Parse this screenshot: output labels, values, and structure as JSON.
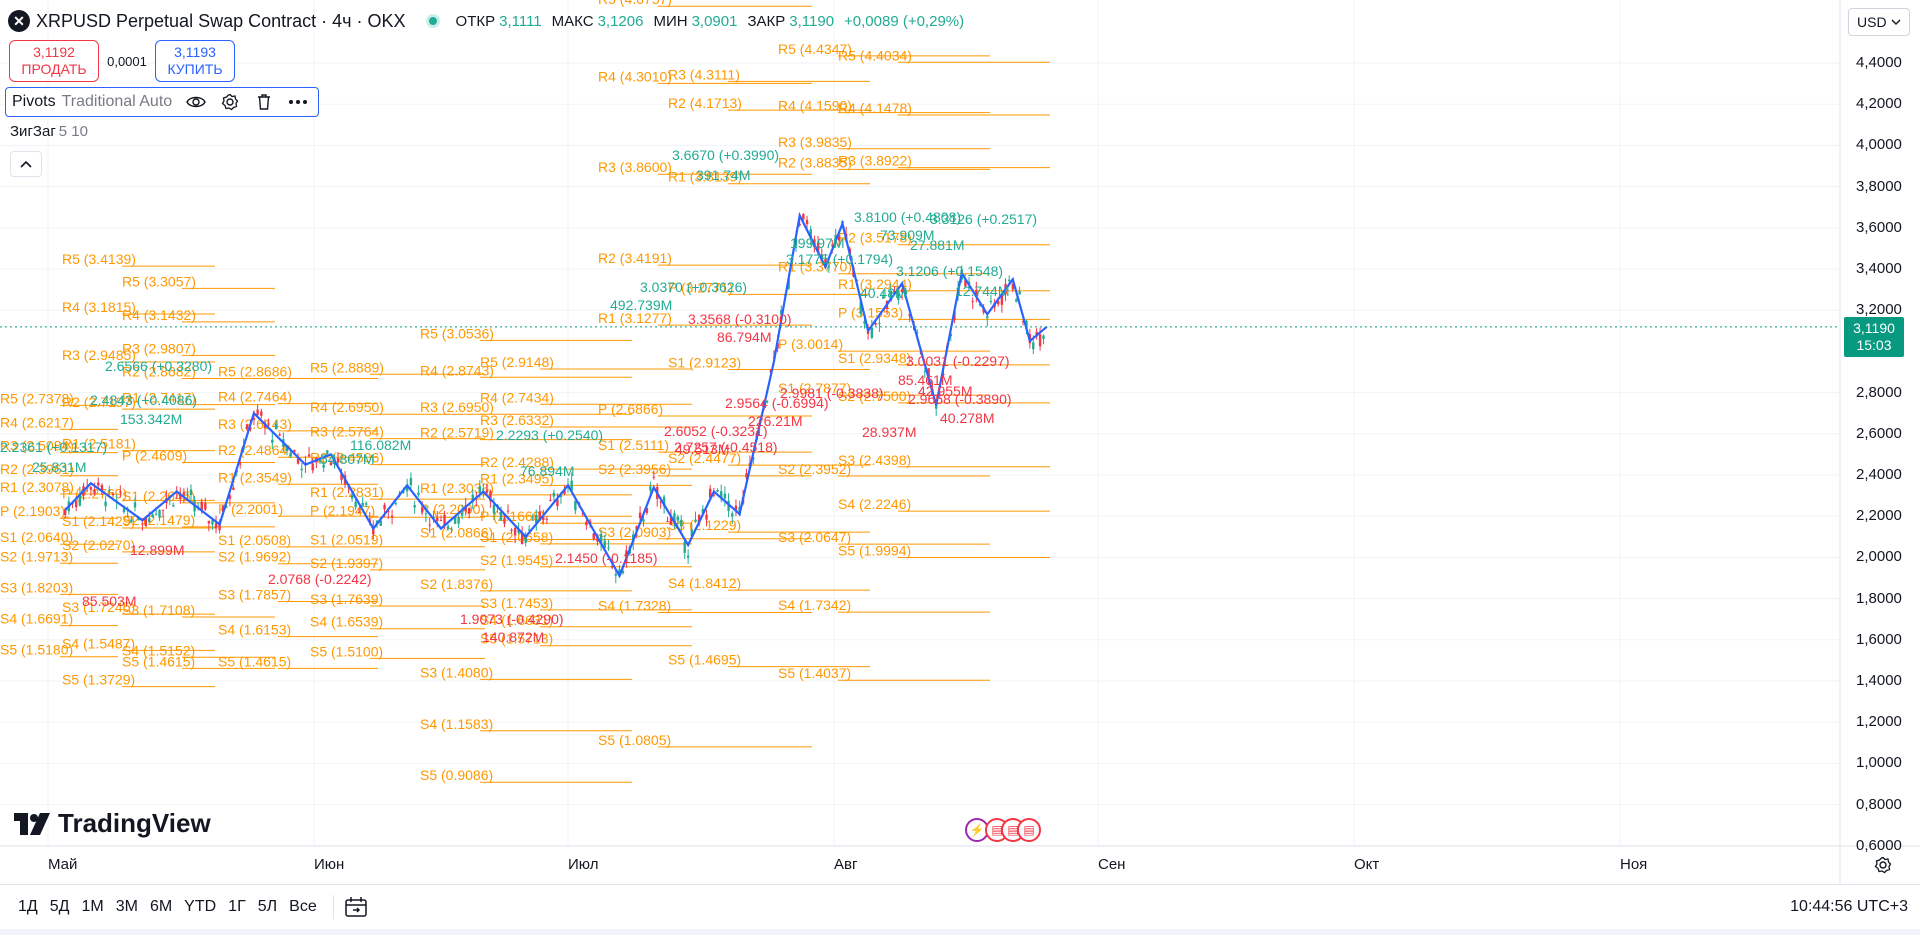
{
  "header": {
    "title": "XRPUSD Perpetual Swap Contract · 4ч · OKX",
    "ohlc": [
      {
        "label": "ОТКР",
        "value": "3,1111"
      },
      {
        "label": "МАКС",
        "value": "3,1206"
      },
      {
        "label": "МИН",
        "value": "3,0901"
      },
      {
        "label": "ЗАКР",
        "value": "3,1190"
      },
      {
        "label": "",
        "value": "+0,0089 (+0,29%)"
      }
    ]
  },
  "trade": {
    "sell_price": "3,1192",
    "sell_label": "ПРОДАТЬ",
    "spread": "0,0001",
    "buy_price": "3,1193",
    "buy_label": "КУПИТЬ"
  },
  "indicators": {
    "pivots_name": "Pivots",
    "pivots_args": "Traditional Auto",
    "zigzag_name": "ЗигЗаг",
    "zigzag_args": "5 10"
  },
  "logo": {
    "text": "TradingView"
  },
  "price_scale": {
    "currency": "USD",
    "labels": [
      "4,4000",
      "4,2000",
      "4,0000",
      "3,8000",
      "3,6000",
      "3,4000",
      "3,2000",
      "2,8000",
      "2,6000",
      "2,4000",
      "2,2000",
      "2,0000",
      "1,8000",
      "1,6000",
      "1,4000",
      "1,2000",
      "1,0000",
      "0,8000",
      "0,6000"
    ],
    "last_price": "3,1190",
    "countdown": "15:03"
  },
  "time_axis": {
    "labels": [
      "Май",
      "Июн",
      "Июл",
      "Авг",
      "Сен",
      "Окт",
      "Ноя"
    ]
  },
  "toolbar": {
    "ranges": [
      "1Д",
      "5Д",
      "1М",
      "3М",
      "6М",
      "YTD",
      "1Г",
      "5Л",
      "Все"
    ],
    "clock": "10:44:56 UTC+3"
  },
  "colors": {
    "pivot": "#ff9800",
    "zigzag": "#2962ff",
    "up": "#22ab94",
    "down": "#f23645",
    "last": "#089981"
  },
  "chart_data": {
    "type": "line",
    "title": "XRPUSD Perpetual Swap Contract · 4ч · OKX",
    "yrange": [
      0.6,
      4.5
    ],
    "xlabels": [
      "Май",
      "Июн",
      "Июл",
      "Авг",
      "Сен",
      "Окт",
      "Ноя"
    ],
    "pivot_levels": [
      {
        "group": 1,
        "levels": [
          [
            "R5 (2.7378)",
            2.7378
          ],
          [
            "R4 (2.6217)",
            2.6217
          ],
          [
            "R3 (2.5084)",
            2.5084
          ],
          [
            "R2 (2.3961)",
            2.3961
          ],
          [
            "R1 (2.3078)",
            2.3078
          ],
          [
            "P (2.1903)",
            2.1903
          ],
          [
            "S1 (2.0640)",
            2.064
          ],
          [
            "S2 (1.9713)",
            1.9713
          ],
          [
            "S3 (1.8203)",
            1.8203
          ],
          [
            "S4 (1.6691)",
            1.6691
          ],
          [
            "S5 (1.5180)",
            1.518
          ]
        ]
      },
      {
        "group": 2,
        "levels": [
          [
            "R5 (3.4139)",
            3.4139
          ],
          [
            "R4 (3.1815)",
            3.1815
          ],
          [
            "R3 (2.9485)",
            2.9485
          ],
          [
            "R2 (2.7197)",
            2.7197
          ],
          [
            "R1 (2.5181)",
            2.5181
          ],
          [
            "P (2.2769)",
            2.2769
          ],
          [
            "S1 (2.1429)",
            2.1429
          ],
          [
            "S2 (2.0270)",
            2.027
          ],
          [
            "S3 (1.7245)",
            1.7245
          ],
          [
            "S4 (1.5487)",
            1.5487
          ],
          [
            "S5 (1.3729)",
            1.3729
          ]
        ]
      },
      {
        "group": 3,
        "levels": [
          [
            "R5 (3.3057)",
            3.3057
          ],
          [
            "R4 (3.1432)",
            3.1432
          ],
          [
            "R3 (2.9807)",
            2.9807
          ],
          [
            "R2 (2.8682)",
            2.8682
          ],
          [
            "R1 (2.7417)",
            2.7417
          ],
          [
            "P (2.4609)",
            2.4609
          ],
          [
            "S1 (2.2645)",
            2.2645
          ],
          [
            "S2 (2.1479)",
            2.1479
          ],
          [
            "S3 (1.7108)",
            1.7108
          ],
          [
            "S4 (1.5152)",
            1.5152
          ],
          [
            "S5 (1.4615)",
            1.4615
          ]
        ]
      },
      {
        "group": 4,
        "levels": [
          [
            "R5 (2.8686)",
            2.8686
          ],
          [
            "R4 (2.7464)",
            2.7464
          ],
          [
            "R3 (2.6143)",
            2.6143
          ],
          [
            "R2 (2.4864)",
            2.4864
          ],
          [
            "R1 (2.3549)",
            2.3549
          ],
          [
            "P (2.2001)",
            2.2001
          ],
          [
            "S1 (2.0508)",
            2.0508
          ],
          [
            "S2 (1.9692)",
            1.9692
          ],
          [
            "S3 (1.7857)",
            1.7857
          ],
          [
            "S4 (1.6153)",
            1.6153
          ],
          [
            "S5 (1.4615)",
            1.4615
          ]
        ]
      },
      {
        "group": 5,
        "levels": [
          [
            "R5 (2.8889)",
            2.8889
          ],
          [
            "R4 (2.6950)",
            2.695
          ],
          [
            "R3 (2.5764)",
            2.5764
          ],
          [
            "R2 (2.4506)",
            2.4506
          ],
          [
            "R1 (2.2831)",
            2.2831
          ],
          [
            "P (2.1947)",
            2.1947
          ],
          [
            "S1 (2.0519)",
            2.0519
          ],
          [
            "S2 (1.9397)",
            1.9397
          ],
          [
            "S3 (1.7639)",
            1.7639
          ],
          [
            "S4 (1.6539)",
            1.6539
          ],
          [
            "S5 (1.5100)",
            1.51
          ]
        ]
      },
      {
        "group": 6,
        "levels": [
          [
            "R5 (3.0536)",
            3.0536
          ],
          [
            "R4 (2.8743)",
            2.8743
          ],
          [
            "R3 (2.6950)",
            2.695
          ],
          [
            "R2 (2.5719)",
            2.5719
          ],
          [
            "R1 (2.3033)",
            2.3033
          ],
          [
            "P (2.2000)",
            2.2
          ],
          [
            "S1 (2.0866)",
            2.0866
          ],
          [
            "S2 (1.8376)",
            1.8376
          ],
          [
            "S3 (1.4080)",
            1.408
          ],
          [
            "S4 (1.1583)",
            1.1583
          ],
          [
            "S5 (0.9086)",
            0.9086
          ]
        ]
      },
      {
        "group": 7,
        "levels": [
          [
            "R5 (2.9148)",
            2.9148
          ],
          [
            "R4 (2.7434)",
            2.7434
          ],
          [
            "R3 (2.6332)",
            2.6332
          ],
          [
            "R2 (2.4288)",
            2.4288
          ],
          [
            "R1 (2.3495)",
            2.3495
          ],
          [
            "P (2.1660)",
            2.166
          ],
          [
            "S1 (2.0658)",
            2.0658
          ],
          [
            "S2 (1.9545)",
            1.9545
          ],
          [
            "S3 (1.7453)",
            1.7453
          ],
          [
            "S4 (1.6631)",
            1.6631
          ],
          [
            "S5 (1.5713)",
            1.5713
          ]
        ]
      },
      {
        "group": 8,
        "levels": [
          [
            "R5 (4.6757)",
            4.6757
          ],
          [
            "R4 (4.3010)",
            4.301
          ],
          [
            "R3 (3.8600)",
            3.86
          ],
          [
            "R2 (3.4191)",
            3.4191
          ],
          [
            "R1 (3.1277)",
            3.1277
          ],
          [
            "P (2.6866)",
            2.6866
          ],
          [
            "S1 (2.5111)",
            2.5111
          ],
          [
            "S2 (2.3956)",
            2.3956
          ],
          [
            "S3 (2.0903)",
            2.0903
          ],
          [
            "S4 (1.7328)",
            1.7328
          ],
          [
            "S5 (1.0805)",
            1.0805
          ]
        ]
      },
      {
        "group": 9,
        "levels": [
          [
            "R3 (4.3111)",
            4.3111
          ],
          [
            "R2 (4.1713)",
            4.1713
          ],
          [
            "R1 (3.8139)",
            3.8139
          ],
          [
            "P (3.2771)",
            3.2771
          ],
          [
            "S1 (2.9123)",
            2.9123
          ],
          [
            "S2 (2.4477)",
            2.4477
          ],
          [
            "S3 (2.1229)",
            2.1229
          ],
          [
            "S4 (1.8412)",
            1.8412
          ],
          [
            "S5 (1.4695)",
            1.4695
          ]
        ]
      },
      {
        "group": 10,
        "levels": [
          [
            "R5 (4.4347)",
            4.4347
          ],
          [
            "R4 (4.1590)",
            4.159
          ],
          [
            "R3 (3.9835)",
            3.9835
          ],
          [
            "R2 (3.8835)",
            3.8835
          ],
          [
            "R1 (3.3770)",
            3.377
          ],
          [
            "P (3.0014)",
            3.0014
          ],
          [
            "S1 (2.7877)",
            2.7877
          ],
          [
            "S2 (2.3952)",
            2.3952
          ],
          [
            "S3 (2.0647)",
            2.0647
          ],
          [
            "S4 (1.7342)",
            1.7342
          ],
          [
            "S5 (1.4037)",
            1.4037
          ]
        ]
      },
      {
        "group": 11,
        "levels": [
          [
            "R5 (4.4034)",
            4.4034
          ],
          [
            "R4 (4.1478)",
            4.1478
          ],
          [
            "R3 (3.8922)",
            3.8922
          ],
          [
            "R2 (3.5178)",
            3.5178
          ],
          [
            "R1 (3.2944)",
            3.2944
          ],
          [
            "P (3.1553)",
            3.1553
          ],
          [
            "S1 (2.9348)",
            2.9348
          ],
          [
            "S2 (2.7500)",
            2.75
          ],
          [
            "S3 (2.4398)",
            2.4398
          ],
          [
            "S4 (2.2246)",
            2.2246
          ],
          [
            "S5 (1.9994)",
            1.9994
          ]
        ]
      }
    ],
    "zigzag_labels": [
      {
        "text": "3.6670 (+0.3990)",
        "kind": "up"
      },
      {
        "text": "3.8100 (+0.4808)",
        "kind": "up"
      },
      {
        "text": "3.3126 (+0.2517)",
        "kind": "up"
      },
      {
        "text": "3.1775 (+0.1794)",
        "kind": "up"
      },
      {
        "text": "3.1206 (+0.1548)",
        "kind": "up"
      },
      {
        "text": "3.0370 (+0.3626)",
        "kind": "up"
      },
      {
        "text": "2.6566 (+0.3280)",
        "kind": "up"
      },
      {
        "text": "2.4843 (+0.4086)",
        "kind": "up"
      },
      {
        "text": "2.2361 (+0.1317)",
        "kind": "up"
      },
      {
        "text": "2.2293 (+0.2540)",
        "kind": "up"
      },
      {
        "text": "3.3568 (-0.3100)",
        "kind": "down"
      },
      {
        "text": "2.9564 (-0.6994)",
        "kind": "down"
      },
      {
        "text": "2.9981 (-0.3838)",
        "kind": "down"
      },
      {
        "text": "3.0031 (-0.2297)",
        "kind": "down"
      },
      {
        "text": "2.9658 (-0.3890)",
        "kind": "down"
      },
      {
        "text": "2.7257 (-0.4518)",
        "kind": "down"
      },
      {
        "text": "2.6052 (-0.3231)",
        "kind": "down"
      },
      {
        "text": "2.0768 (-0.2242)",
        "kind": "down"
      },
      {
        "text": "1.9073 (-0.4290)",
        "kind": "down"
      },
      {
        "text": "2.1450 (-0.1185)",
        "kind": "down"
      }
    ],
    "volume_labels": [
      {
        "text": "391.74M",
        "kind": "up"
      },
      {
        "text": "199.97M",
        "kind": "up"
      },
      {
        "text": "492.739M",
        "kind": "up"
      },
      {
        "text": "73.909M",
        "kind": "up"
      },
      {
        "text": "27.881M",
        "kind": "up"
      },
      {
        "text": "40.48M",
        "kind": "up"
      },
      {
        "text": "12.744M",
        "kind": "up"
      },
      {
        "text": "153.342M",
        "kind": "up"
      },
      {
        "text": "54.807M",
        "kind": "up"
      },
      {
        "text": "116.082M",
        "kind": "up"
      },
      {
        "text": "25.831M",
        "kind": "up"
      },
      {
        "text": "76.894M",
        "kind": "up"
      },
      {
        "text": "86.794M",
        "kind": "down"
      },
      {
        "text": "226.21M",
        "kind": "down"
      },
      {
        "text": "28.937M",
        "kind": "down"
      },
      {
        "text": "49.513M",
        "kind": "down"
      },
      {
        "text": "85.461M",
        "kind": "down"
      },
      {
        "text": "42.955M",
        "kind": "down"
      },
      {
        "text": "40.278M",
        "kind": "down"
      },
      {
        "text": "12.899M",
        "kind": "down"
      },
      {
        "text": "85.503M",
        "kind": "down"
      },
      {
        "text": "140.872M",
        "kind": "down"
      }
    ],
    "zigzag_points": [
      [
        "03.05",
        2.23
      ],
      [
        "06.05",
        2.36
      ],
      [
        "12.05",
        2.18
      ],
      [
        "16.05",
        2.32
      ],
      [
        "21.05",
        2.16
      ],
      [
        "25.05",
        2.7
      ],
      [
        "31.05",
        2.45
      ],
      [
        "03.06",
        2.5
      ],
      [
        "08.06",
        2.14
      ],
      [
        "12.06",
        2.35
      ],
      [
        "16.06",
        2.14
      ],
      [
        "21.06",
        2.32
      ],
      [
        "26.06",
        2.1
      ],
      [
        "01.07",
        2.35
      ],
      [
        "07.07",
        1.91
      ],
      [
        "11.07",
        2.34
      ],
      [
        "15.07",
        2.06
      ],
      [
        "18.07",
        2.32
      ],
      [
        "21.07",
        2.21
      ],
      [
        "25.07",
        2.95
      ],
      [
        "28.07",
        3.66
      ],
      [
        "31.07",
        3.41
      ],
      [
        "02.08",
        3.62
      ],
      [
        "05.08",
        3.1
      ],
      [
        "09.08",
        3.33
      ],
      [
        "13.08",
        2.74
      ],
      [
        "16.08",
        3.38
      ],
      [
        "19.08",
        3.18
      ],
      [
        "22.08",
        3.35
      ],
      [
        "24.08",
        3.05
      ],
      [
        "26.08",
        3.12
      ]
    ]
  }
}
